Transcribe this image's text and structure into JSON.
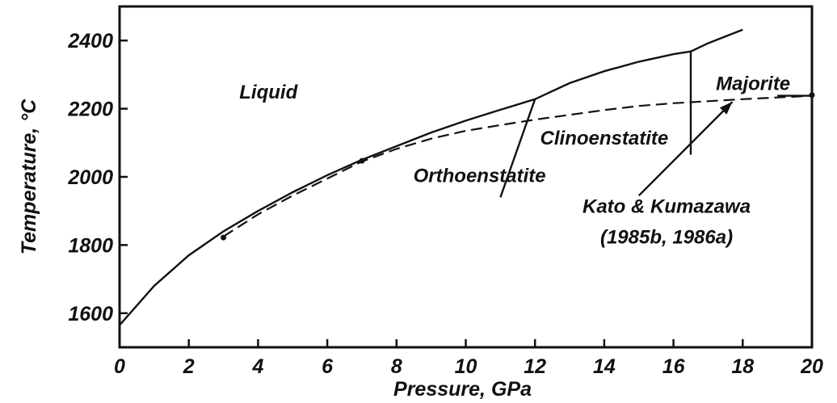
{
  "chart_data": {
    "type": "line",
    "xlabel": "Pressure, GPa",
    "ylabel": "Temperature, °C",
    "xlim": [
      0,
      20
    ],
    "ylim": [
      1500,
      2500
    ],
    "x_ticks": [
      0,
      2,
      4,
      6,
      8,
      10,
      12,
      14,
      16,
      18,
      20
    ],
    "x_tick_labels": [
      "0",
      "2",
      "4",
      "6",
      "8",
      "10",
      "12",
      "14",
      "16",
      "18",
      "20"
    ],
    "y_ticks": [
      1600,
      1800,
      2000,
      2200,
      2400
    ],
    "y_tick_labels": [
      "1600",
      "1800",
      "2000",
      "2200",
      "2400"
    ],
    "grid": false,
    "series": [
      {
        "style": "solid",
        "points": [
          [
            0,
            1565
          ],
          [
            1,
            1680
          ],
          [
            2,
            1770
          ],
          [
            3,
            1840
          ],
          [
            4,
            1900
          ],
          [
            5,
            1955
          ],
          [
            6,
            2005
          ],
          [
            7,
            2050
          ],
          [
            8,
            2090
          ],
          [
            9,
            2130
          ],
          [
            10,
            2165
          ],
          [
            11,
            2197
          ],
          [
            12,
            2228
          ],
          [
            13,
            2275
          ],
          [
            14,
            2310
          ],
          [
            15,
            2338
          ],
          [
            16,
            2360
          ],
          [
            16.5,
            2368
          ],
          [
            17,
            2392
          ],
          [
            17.5,
            2412
          ],
          [
            18,
            2432
          ]
        ]
      },
      {
        "style": "dashed",
        "points": [
          [
            3,
            1825
          ],
          [
            4,
            1890
          ],
          [
            5,
            1945
          ],
          [
            6,
            1995
          ],
          [
            7,
            2045
          ],
          [
            8,
            2082
          ],
          [
            9,
            2112
          ],
          [
            10,
            2135
          ],
          [
            11,
            2152
          ],
          [
            12,
            2168
          ],
          [
            13,
            2182
          ],
          [
            14,
            2196
          ],
          [
            15,
            2208
          ],
          [
            16,
            2216
          ],
          [
            17,
            2222
          ],
          [
            18,
            2228
          ],
          [
            19,
            2233
          ],
          [
            20,
            2238
          ]
        ]
      },
      {
        "style": "solid",
        "points": [
          [
            11,
            1940
          ],
          [
            12,
            2228
          ]
        ]
      },
      {
        "style": "solid",
        "points": [
          [
            16.5,
            2065
          ],
          [
            16.5,
            2368
          ]
        ]
      },
      {
        "style": "solid",
        "points": [
          [
            19,
            2238
          ],
          [
            20,
            2238
          ]
        ]
      }
    ],
    "markers": [
      [
        3,
        1822
      ],
      [
        7,
        2047
      ],
      [
        20,
        2240
      ]
    ],
    "annotations": [
      {
        "text": "Liquid",
        "x": 4.3,
        "y": 2230
      },
      {
        "text": "Orthoenstatite",
        "x": 10.4,
        "y": 1985
      },
      {
        "text": "Clinoenstatite",
        "x": 14.0,
        "y": 2095
      },
      {
        "text": "Majorite",
        "x": 18.3,
        "y": 2255
      },
      {
        "text": "Kato & Kumazawa",
        "x": 15.8,
        "y": 1895
      },
      {
        "text": "(1985b, 1986a)",
        "x": 15.8,
        "y": 1805
      }
    ],
    "arrow": {
      "from": [
        15.0,
        1945
      ],
      "to": [
        17.7,
        2220
      ]
    }
  }
}
